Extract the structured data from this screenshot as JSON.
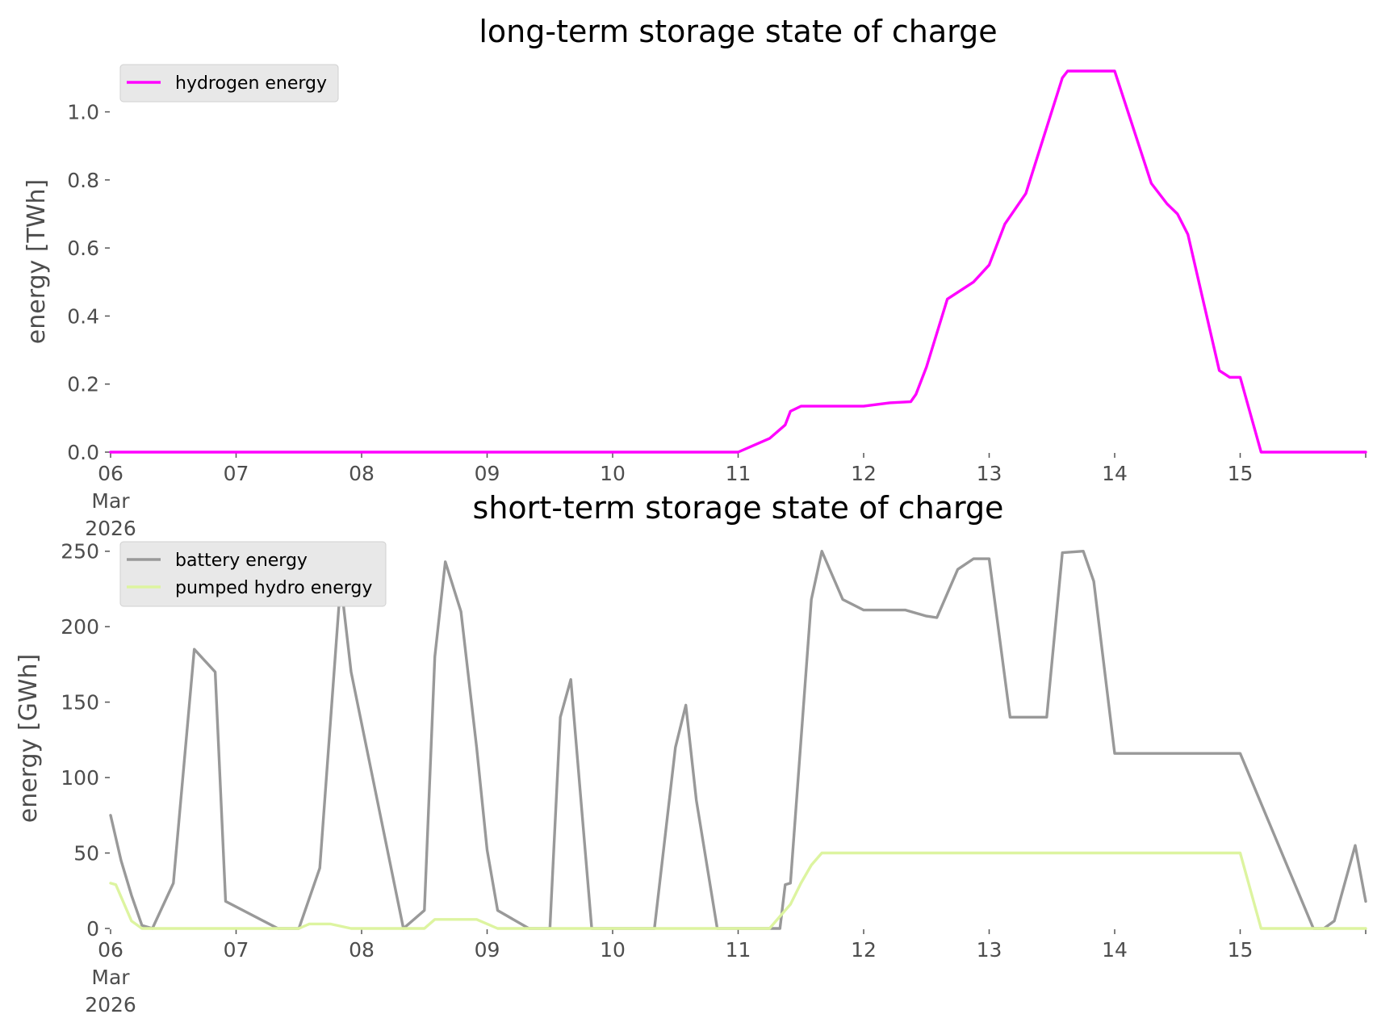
{
  "chart_data": [
    {
      "type": "line",
      "title": "long-term storage state of charge",
      "xlabel": "",
      "ylabel": "energy [TWh]",
      "xlim": [
        "2026-03-06 00:00",
        "2026-03-16 00:00"
      ],
      "ylim": [
        0,
        1.12
      ],
      "x_ticks": [
        "06\nMar\n2026",
        "07",
        "08",
        "09",
        "10",
        "11",
        "12",
        "13",
        "14",
        "15"
      ],
      "y_ticks": [
        "0.0",
        "0.2",
        "0.4",
        "0.6",
        "0.8",
        "1.0"
      ],
      "grid": false,
      "legend": "top-left",
      "series": [
        {
          "name": "hydrogen energy",
          "color": "#ff00ff",
          "x": [
            "2026-03-06 00:00",
            "2026-03-11 00:00",
            "2026-03-11 06:00",
            "2026-03-11 09:00",
            "2026-03-11 10:00",
            "2026-03-11 12:00",
            "2026-03-11 16:00",
            "2026-03-12 00:00",
            "2026-03-12 05:00",
            "2026-03-12 09:00",
            "2026-03-12 10:00",
            "2026-03-12 12:00",
            "2026-03-12 16:00",
            "2026-03-12 21:00",
            "2026-03-13 00:00",
            "2026-03-13 03:00",
            "2026-03-13 07:00",
            "2026-03-13 14:00",
            "2026-03-13 15:00",
            "2026-03-14 00:00",
            "2026-03-14 07:00",
            "2026-03-14 10:00",
            "2026-03-14 12:00",
            "2026-03-14 14:00",
            "2026-03-14 20:00",
            "2026-03-14 22:00",
            "2026-03-15 00:00",
            "2026-03-15 04:00",
            "2026-03-16 00:00"
          ],
          "values": [
            0.0,
            0.0,
            0.04,
            0.08,
            0.12,
            0.135,
            0.135,
            0.135,
            0.145,
            0.148,
            0.17,
            0.25,
            0.45,
            0.5,
            0.55,
            0.67,
            0.76,
            1.1,
            1.12,
            1.12,
            0.79,
            0.73,
            0.7,
            0.64,
            0.24,
            0.22,
            0.22,
            0.0,
            0.0
          ]
        }
      ]
    },
    {
      "type": "line",
      "title": "short-term storage state of charge",
      "xlabel": "",
      "ylabel": "energy [GWh]",
      "xlim": [
        "2026-03-06 00:00",
        "2026-03-16 00:00"
      ],
      "ylim": [
        0,
        252
      ],
      "x_ticks": [
        "06\nMar\n2026",
        "07",
        "08",
        "09",
        "10",
        "11",
        "12",
        "13",
        "14",
        "15"
      ],
      "y_ticks": [
        "0",
        "50",
        "100",
        "150",
        "200",
        "250"
      ],
      "grid": false,
      "legend": "top-left",
      "series": [
        {
          "name": "battery energy",
          "color": "#999999",
          "x": [
            "2026-03-06 00:00",
            "2026-03-06 02:00",
            "2026-03-06 04:00",
            "2026-03-06 06:00",
            "2026-03-06 08:00",
            "2026-03-06 12:00",
            "2026-03-06 16:00",
            "2026-03-06 20:00",
            "2026-03-06 22:00",
            "2026-03-07 08:00",
            "2026-03-07 12:00",
            "2026-03-07 16:00",
            "2026-03-07 20:00",
            "2026-03-07 22:00",
            "2026-03-08 08:00",
            "2026-03-08 12:00",
            "2026-03-08 14:00",
            "2026-03-08 16:00",
            "2026-03-08 19:00",
            "2026-03-08 22:00",
            "2026-03-09 00:00",
            "2026-03-09 02:00",
            "2026-03-09 08:00",
            "2026-03-09 12:00",
            "2026-03-09 14:00",
            "2026-03-09 16:00",
            "2026-03-09 20:00",
            "2026-03-10 08:00",
            "2026-03-10 12:00",
            "2026-03-10 14:00",
            "2026-03-10 16:00",
            "2026-03-10 20:00",
            "2026-03-11 08:00",
            "2026-03-11 09:00",
            "2026-03-11 10:00",
            "2026-03-11 14:00",
            "2026-03-11 16:00",
            "2026-03-11 20:00",
            "2026-03-12 00:00",
            "2026-03-12 08:00",
            "2026-03-12 12:00",
            "2026-03-12 14:00",
            "2026-03-12 18:00",
            "2026-03-12 21:00",
            "2026-03-13 00:00",
            "2026-03-13 04:00",
            "2026-03-13 05:00",
            "2026-03-13 11:00",
            "2026-03-13 14:00",
            "2026-03-13 18:00",
            "2026-03-13 20:00",
            "2026-03-14 00:00",
            "2026-03-14 20:00",
            "2026-03-14 21:00",
            "2026-03-15 00:00",
            "2026-03-15 14:00",
            "2026-03-15 16:00",
            "2026-03-15 18:00",
            "2026-03-15 22:00",
            "2026-03-16 00:00"
          ],
          "values": [
            75,
            45,
            22,
            2,
            0,
            30,
            185,
            170,
            18,
            0,
            0,
            40,
            230,
            170,
            0,
            12,
            180,
            243,
            210,
            120,
            52,
            12,
            0,
            0,
            140,
            165,
            0,
            0,
            120,
            148,
            85,
            0,
            0,
            29,
            30,
            218,
            250,
            218,
            211,
            211,
            207,
            206,
            238,
            245,
            245,
            140,
            140,
            140,
            249,
            250,
            230,
            116,
            116,
            116,
            116,
            0,
            0,
            5,
            55,
            18
          ]
        },
        {
          "name": "pumped hydro energy",
          "color": "#ddf4a0",
          "x": [
            "2026-03-06 00:00",
            "2026-03-06 01:00",
            "2026-03-06 04:00",
            "2026-03-06 06:00",
            "2026-03-07 12:00",
            "2026-03-07 14:00",
            "2026-03-07 18:00",
            "2026-03-07 22:00",
            "2026-03-08 12:00",
            "2026-03-08 14:00",
            "2026-03-08 18:00",
            "2026-03-08 22:00",
            "2026-03-09 02:00",
            "2026-03-11 06:00",
            "2026-03-11 08:00",
            "2026-03-11 10:00",
            "2026-03-11 12:00",
            "2026-03-11 14:00",
            "2026-03-11 16:00",
            "2026-03-11 18:00",
            "2026-03-12 00:00",
            "2026-03-14 18:00",
            "2026-03-14 22:00",
            "2026-03-15 00:00",
            "2026-03-15 04:00",
            "2026-03-16 00:00"
          ],
          "values": [
            30,
            29,
            5,
            0,
            0,
            3,
            3,
            0,
            0,
            6,
            6,
            6,
            0,
            0,
            8,
            16,
            30,
            42,
            50,
            50,
            50,
            50,
            50,
            50,
            0,
            0
          ]
        }
      ]
    }
  ]
}
